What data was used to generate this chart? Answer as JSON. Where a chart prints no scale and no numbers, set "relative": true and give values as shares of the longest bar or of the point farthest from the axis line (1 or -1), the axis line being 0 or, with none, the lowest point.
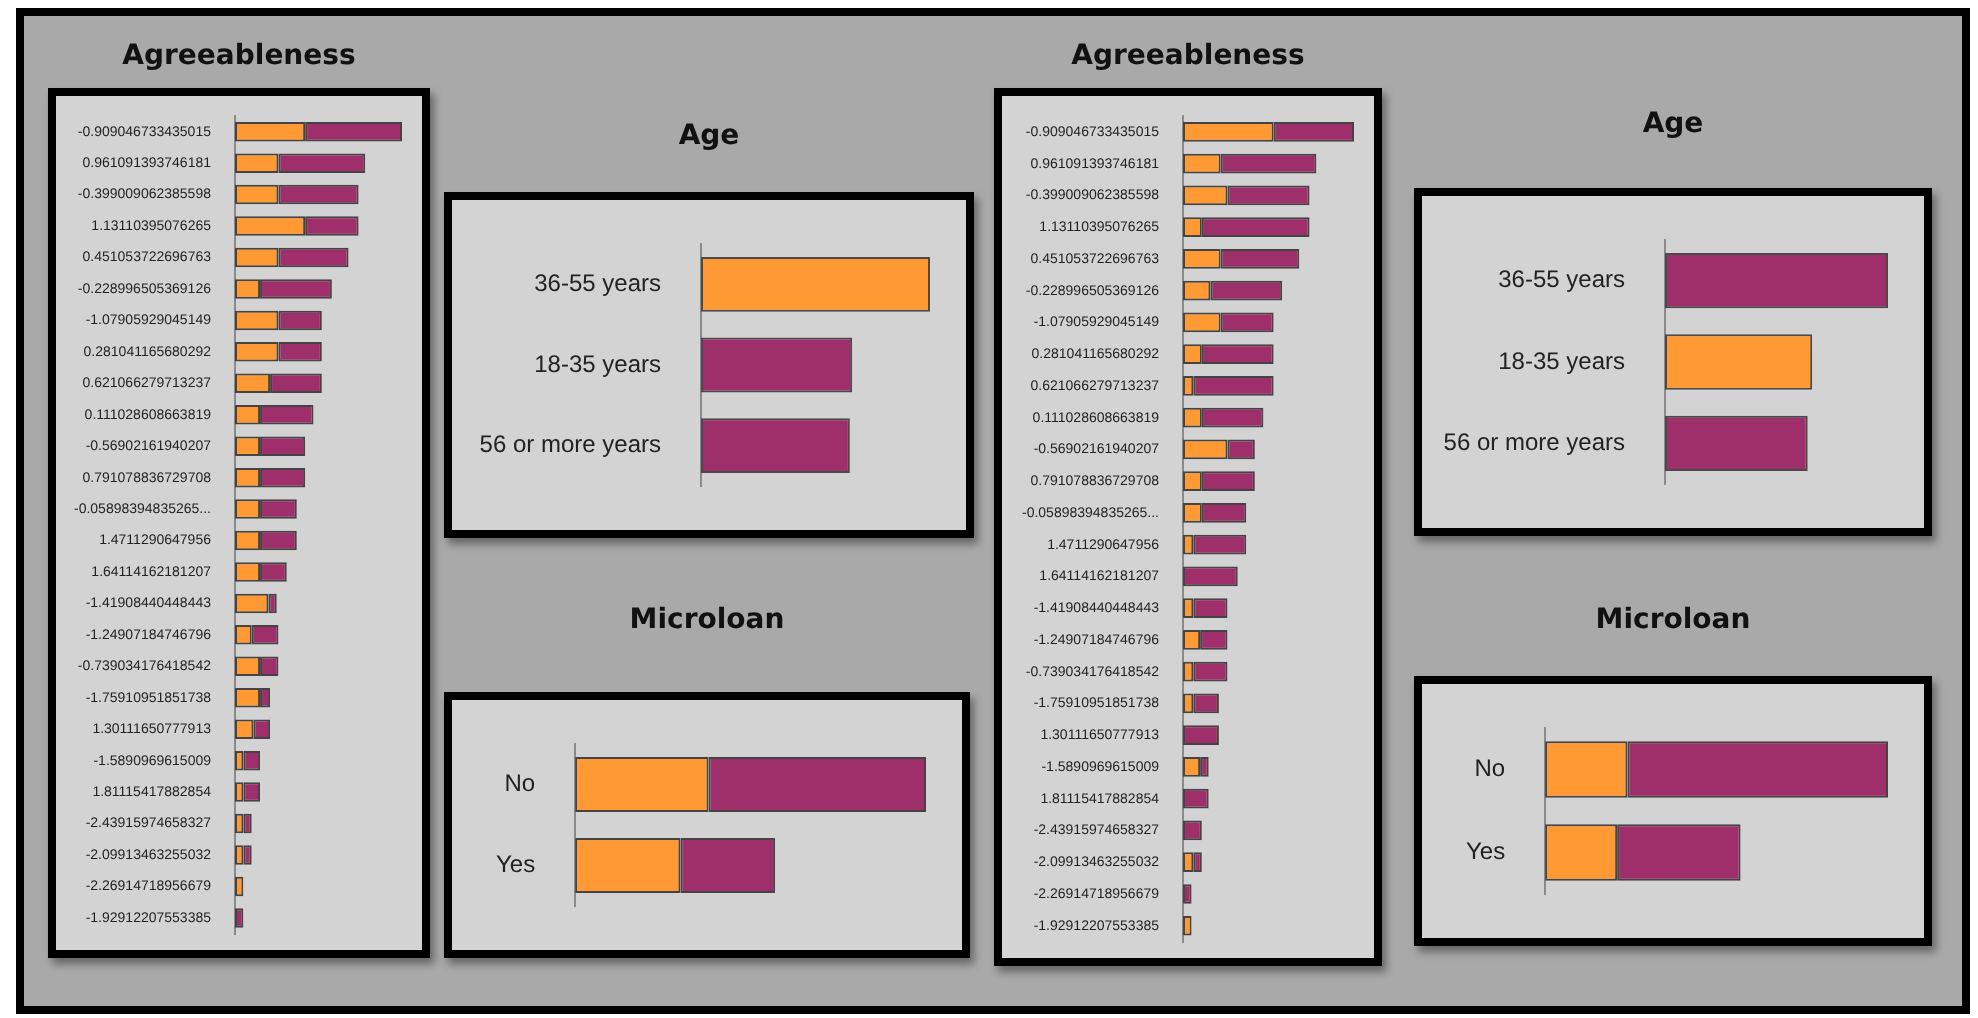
{
  "chart_data": [
    {
      "type": "bar",
      "title": "Agreeableness",
      "orientation": "horizontal",
      "stacked": true,
      "relative": true,
      "categories": [
        "-0.909046733435015",
        "0.961091393746181",
        "-0.399009062385598",
        "1.13110395076265",
        "0.451053722696763",
        "-0.228996505369126",
        "-1.07905929045149",
        "0.281041165680292",
        "0.621066279713237",
        "0.111028608663819",
        "-0.56902161940207",
        "0.791078836729708",
        "-0.05898394835265...",
        "1.4711290647956",
        "1.64114162181207",
        "-1.41908440448443",
        "-1.24907184746796",
        "-0.739034176418542",
        "-1.75910951851738",
        "1.30111650777913",
        "-1.5890969615009",
        "1.81115417882854",
        "-2.43915974658327",
        "-2.09913463255032",
        "-2.26914718956679",
        "-1.92912207553385"
      ],
      "series": [
        {
          "color": "#ff9933",
          "values": [
            0.42,
            0.26,
            0.26,
            0.42,
            0.26,
            0.15,
            0.26,
            0.26,
            0.21,
            0.15,
            0.15,
            0.15,
            0.15,
            0.15,
            0.15,
            0.2,
            0.1,
            0.15,
            0.15,
            0.11,
            0.05,
            0.05,
            0.05,
            0.05,
            0.05,
            0
          ]
        },
        {
          "color": "#9e2f6b",
          "values": [
            0.58,
            0.52,
            0.48,
            0.32,
            0.42,
            0.43,
            0.26,
            0.26,
            0.31,
            0.32,
            0.27,
            0.27,
            0.22,
            0.22,
            0.16,
            0.05,
            0.16,
            0.11,
            0.06,
            0.1,
            0.1,
            0.1,
            0.05,
            0.05,
            0,
            0.05
          ]
        }
      ]
    },
    {
      "type": "bar",
      "title": "Age",
      "orientation": "horizontal",
      "relative": true,
      "categories": [
        "36-55 years",
        "18-35 years",
        "56 or more years"
      ],
      "values": [
        1,
        0.66,
        0.65
      ],
      "colors": [
        "#ff9933",
        "#9e2f6b",
        "#9e2f6b"
      ]
    },
    {
      "type": "bar",
      "title": "Microloan",
      "orientation": "horizontal",
      "stacked": true,
      "relative": true,
      "categories": [
        "No",
        "Yes"
      ],
      "series": [
        {
          "color": "#ff9933",
          "values": [
            0.38,
            0.3
          ]
        },
        {
          "color": "#9e2f6b",
          "values": [
            0.62,
            0.27
          ]
        }
      ]
    },
    {
      "type": "bar",
      "title": "Agreeableness",
      "orientation": "horizontal",
      "stacked": true,
      "relative": true,
      "categories": [
        "-0.909046733435015",
        "0.961091393746181",
        "-0.399009062385598",
        "1.13110395076265",
        "0.451053722696763",
        "-0.228996505369126",
        "-1.07905929045149",
        "0.281041165680292",
        "0.621066279713237",
        "0.111028608663819",
        "-0.56902161940207",
        "0.791078836729708",
        "-0.05898394835265...",
        "1.4711290647956",
        "1.64114162181207",
        "-1.41908440448443",
        "-1.24907184746796",
        "-0.739034176418542",
        "-1.75910951851738",
        "1.30111650777913",
        "-1.5890969615009",
        "1.81115417882854",
        "-2.43915974658327",
        "-2.09913463255032",
        "-2.26914718956679",
        "-1.92912207553385"
      ],
      "series": [
        {
          "color": "#ff9933",
          "values": [
            0.53,
            0.22,
            0.26,
            0.11,
            0.22,
            0.16,
            0.22,
            0.11,
            0.06,
            0.11,
            0.26,
            0.11,
            0.11,
            0.06,
            0,
            0.06,
            0.1,
            0.06,
            0.06,
            0,
            0.1,
            0,
            0,
            0.06,
            0,
            0.05
          ]
        },
        {
          "color": "#9e2f6b",
          "values": [
            0.47,
            0.56,
            0.48,
            0.63,
            0.46,
            0.42,
            0.31,
            0.42,
            0.47,
            0.36,
            0.16,
            0.31,
            0.26,
            0.31,
            0.32,
            0.2,
            0.16,
            0.2,
            0.15,
            0.21,
            0.05,
            0.15,
            0.11,
            0.05,
            0.05,
            0
          ]
        }
      ]
    },
    {
      "type": "bar",
      "title": "Age",
      "orientation": "horizontal",
      "relative": true,
      "categories": [
        "36-55 years",
        "18-35 years",
        "56 or more years"
      ],
      "values": [
        1,
        0.66,
        0.64
      ],
      "colors": [
        "#9e2f6b",
        "#ff9933",
        "#9e2f6b"
      ]
    },
    {
      "type": "bar",
      "title": "Microloan",
      "orientation": "horizontal",
      "stacked": true,
      "relative": true,
      "categories": [
        "No",
        "Yes"
      ],
      "series": [
        {
          "color": "#ff9933",
          "values": [
            0.24,
            0.21
          ]
        },
        {
          "color": "#9e2f6b",
          "values": [
            0.76,
            0.36
          ]
        }
      ]
    }
  ]
}
